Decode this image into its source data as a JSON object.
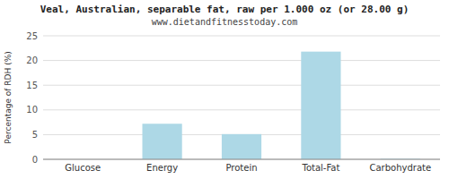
{
  "chart_data": {
    "type": "bar",
    "title": "Veal, Australian, separable fat, raw per 1.000 oz (or 28.00 g)",
    "subtitle": "www.dietandfitnesstoday.com",
    "categories": [
      "Glucose",
      "Energy",
      "Protein",
      "Total-Fat",
      "Carbohydrate"
    ],
    "values": [
      0,
      7.2,
      5.1,
      21.8,
      0.1
    ],
    "color": "#add8e6",
    "ylabel": "Percentage of RDH (%)",
    "ylim": [
      0,
      25
    ],
    "yticks": [
      0,
      5,
      10,
      15,
      20,
      25
    ],
    "grid": true
  }
}
